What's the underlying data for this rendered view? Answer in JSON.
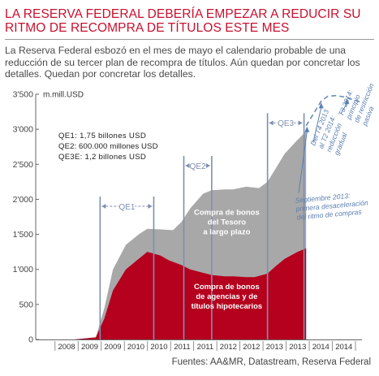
{
  "title": "LA RESERVA FEDERAL DEBERÍA EMPEZAR A REDUCIR SU RITMO DE RECOMPRA DE TÍTULOS ESTE MES",
  "subtitle": "La Reserva Federal esbozó en el mes de mayo el calendario probable de una reducción de su tercer plan de recompra de títulos. Aún quedan por concretar los detalles. Quedan por concretar los detalles.",
  "source": "Fuentes: AA&MR, Datastream, Reserva Federal",
  "colors": {
    "accent": "#c8102e",
    "tesoro": "#a8a8a8",
    "agencias": "#b5001e",
    "projection": "#6a8bb8",
    "bracket": "#7d8fb0"
  },
  "chart_data": {
    "type": "area",
    "ylabel": "m.mill.USD",
    "ylim": [
      0,
      3500
    ],
    "yticks": [
      0,
      500,
      1000,
      1500,
      2000,
      2500,
      3000,
      3500
    ],
    "ytick_labels": [
      "0",
      "500",
      "1'000",
      "1'500",
      "2'000",
      "2'500",
      "3'000",
      "3'500"
    ],
    "xlim": [
      2007.4,
      2015.0
    ],
    "xtick_labels": [
      "2008",
      "2009",
      "2009",
      "2010",
      "2010",
      "2011",
      "2011",
      "2012",
      "2012",
      "2013",
      "2013",
      "2014",
      "2014"
    ],
    "series": [
      {
        "name": "Compra de bonos de agencias y de títulos hipotecarios",
        "stack": "bottom",
        "x": [
          2007.4,
          2008.3,
          2008.8,
          2009.0,
          2009.2,
          2009.5,
          2009.8,
          2010.0,
          2010.3,
          2010.5,
          2010.8,
          2011.0,
          2011.3,
          2011.5,
          2011.8,
          2012.0,
          2012.3,
          2012.5,
          2012.8,
          2013.0,
          2013.2,
          2013.5,
          2013.7
        ],
        "y": [
          0,
          0,
          30,
          300,
          700,
          1000,
          1150,
          1250,
          1200,
          1130,
          1060,
          1000,
          950,
          920,
          900,
          900,
          890,
          890,
          940,
          1050,
          1150,
          1250,
          1300
        ]
      },
      {
        "name": "Compra de bonos del Tesoro a largo plazo",
        "stack": "top",
        "x": [
          2007.4,
          2008.3,
          2008.8,
          2009.0,
          2009.2,
          2009.5,
          2009.8,
          2010.0,
          2010.3,
          2010.6,
          2010.8,
          2011.0,
          2011.3,
          2011.5,
          2011.8,
          2012.0,
          2012.3,
          2012.6,
          2012.8,
          2013.0,
          2013.2,
          2013.5,
          2013.7
        ],
        "y": [
          0,
          0,
          30,
          450,
          1000,
          1350,
          1500,
          1580,
          1570,
          1560,
          1680,
          1870,
          2080,
          2130,
          2140,
          2140,
          2180,
          2160,
          2250,
          2450,
          2650,
          2850,
          2970
        ]
      }
    ],
    "projection": {
      "x": [
        2013.7,
        2013.9,
        2014.05,
        2014.2,
        2014.4,
        2014.6,
        2014.8,
        2014.95
      ],
      "y": [
        3050,
        3250,
        3400,
        3470,
        3480,
        3460,
        3420,
        3390
      ]
    },
    "programs": [
      {
        "label": "QE1",
        "start": 2008.9,
        "end": 2010.15,
        "y": 1900
      },
      {
        "label": "QE2",
        "start": 2010.85,
        "end": 2011.5,
        "y": 2480
      },
      {
        "label": "QE3",
        "start": 2012.8,
        "end": 2013.65,
        "y": 3090
      }
    ],
    "legend": [
      {
        "code": "QE1",
        "text": "QE1: 1,75 billones USD"
      },
      {
        "code": "QE2",
        "text": "QE2: 600.000 millones USD"
      },
      {
        "code": "QE3",
        "text": "QE3E: 1,2 billones USD"
      }
    ],
    "annotations": [
      {
        "lines": [
          "Compra de bonos",
          "del Tesoro",
          "a largo plazo"
        ],
        "x": 2011.85,
        "y": 1780,
        "color": "#ffffff"
      },
      {
        "lines": [
          "Compra de bonos",
          "de agencias y de",
          "títulos hipotecarios"
        ],
        "x": 2011.85,
        "y": 720,
        "color": "#ffffff"
      },
      {
        "lines": [
          "Septiembre 2013:",
          "primera desaceleración",
          "del ritmo de compras"
        ],
        "x": 2013.45,
        "y": 1950,
        "color": "#5a7fb0",
        "arrow_to": [
          2013.72,
          3040
        ]
      },
      {
        "lines": [
          "Del T4 2013",
          "al T2 2014:",
          "reducción",
          "gradual"
        ],
        "x": 2013.9,
        "y": 2760,
        "color": "#5a7fb0",
        "arrow_to": [
          2014.05,
          3380
        ]
      },
      {
        "lines": [
          "T3 2014:",
          "principio",
          "de restricción",
          "pasiva"
        ],
        "x": 2014.55,
        "y": 3180,
        "color": "#5a7fb0",
        "arrow_to": [
          2014.65,
          3440
        ]
      }
    ],
    "grid": false,
    "legend_position": "top-left"
  }
}
